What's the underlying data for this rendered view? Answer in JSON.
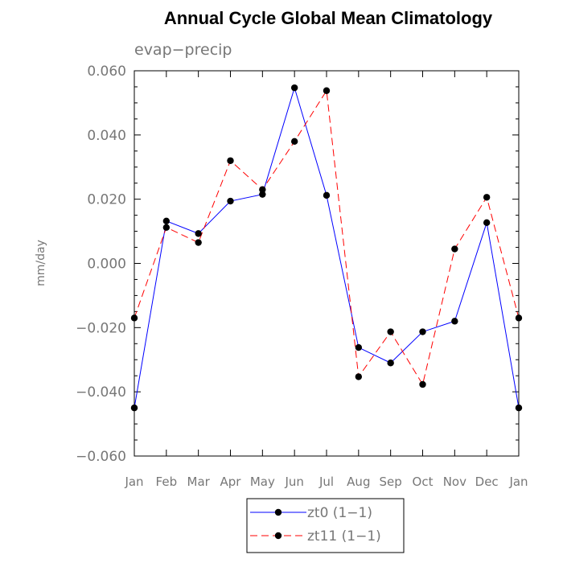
{
  "chart_data": {
    "type": "line",
    "title": "Annual Cycle Global Mean Climatology",
    "subtitle": "evap−precip",
    "ylabel": "mm/day",
    "xlabel": "",
    "categories": [
      "Jan",
      "Feb",
      "Mar",
      "Apr",
      "May",
      "Jun",
      "Jul",
      "Aug",
      "Sep",
      "Oct",
      "Nov",
      "Dec",
      "Jan"
    ],
    "ylim": [
      -0.06,
      0.06
    ],
    "yticks": [
      -0.06,
      -0.04,
      -0.02,
      0.0,
      0.02,
      0.04,
      0.06
    ],
    "ytick_labels": [
      "−0.060",
      "−0.040",
      "−0.020",
      "0.000",
      "0.020",
      "0.040",
      "0.060"
    ],
    "minor_tick_step": 0.005,
    "grid": false,
    "legend_position": "bottom-center",
    "series": [
      {
        "name": "zt0 (1−1)",
        "color": "#0000ff",
        "dash": "solid",
        "marker": "filled-circle",
        "values": [
          -0.045,
          0.0132,
          0.0093,
          0.0194,
          0.0215,
          0.0547,
          0.0212,
          -0.0262,
          -0.031,
          -0.0213,
          -0.018,
          0.0127,
          -0.045
        ]
      },
      {
        "name": "zt11 (1−1)",
        "color": "#ff0000",
        "dash": "dashed",
        "marker": "filled-circle",
        "values": [
          -0.017,
          0.0112,
          0.0065,
          0.032,
          0.023,
          0.038,
          0.0538,
          -0.0353,
          -0.0213,
          -0.0377,
          0.0045,
          0.0206,
          -0.017
        ]
      }
    ]
  }
}
